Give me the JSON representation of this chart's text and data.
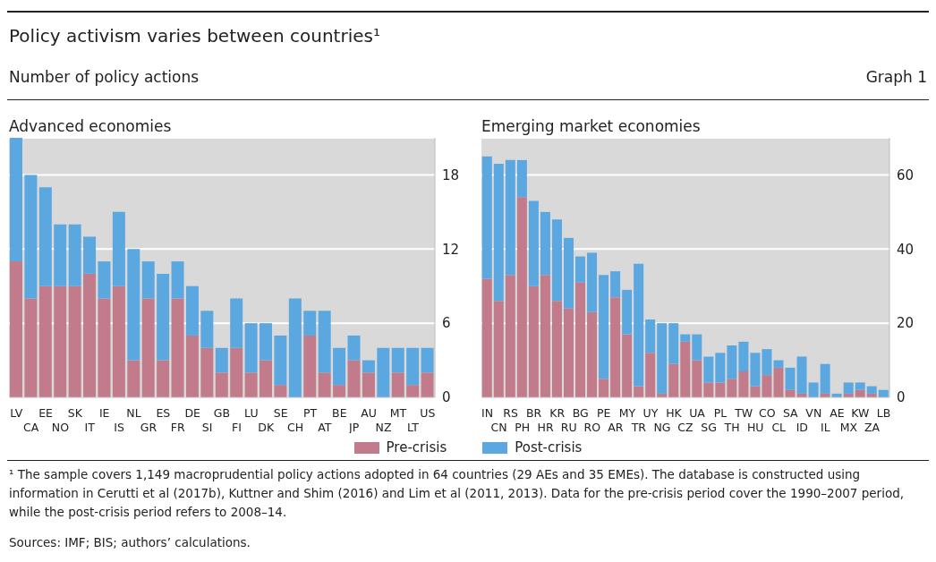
{
  "chart_data": [
    {
      "type": "bar",
      "title": "Advanced economies",
      "stacked": true,
      "grid": "y",
      "legend": "bottom",
      "annotations": [
        "Policy activism varies between countries¹",
        "Number of policy actions",
        "Graph 1",
        "¹ The sample covers 1,149 macroprudential policy actions adopted in 64 countries (29 AEs and 35 EMEs). The database is constructed using information in Cerutti et al (2017b), Kuttner and Shim (2016) and Lim et al (2011, 2013). Data for the pre-crisis period cover the 1990–2007 period, while the post-crisis period refers to 2008–14.",
        "Sources: IMF; BIS; authors’ calculations."
      ],
      "categories": [
        "LV",
        "CA",
        "EE",
        "NO",
        "SK",
        "IT",
        "IE",
        "IS",
        "NL",
        "GR",
        "ES",
        "FR",
        "DE",
        "SI",
        "GB",
        "FI",
        "LU",
        "DK",
        "SE",
        "CH",
        "PT",
        "AT",
        "BE",
        "JP",
        "AU",
        "NZ",
        "MT",
        "LT",
        "US"
      ],
      "ylim": [
        0,
        21
      ],
      "yticks": [
        0,
        6,
        12,
        18
      ],
      "series": [
        {
          "name": "Pre-crisis",
          "color": "#c27b8b",
          "values": [
            11,
            8,
            9,
            9,
            9,
            10,
            8,
            9,
            3,
            8,
            3,
            8,
            5,
            4,
            2,
            4,
            2,
            3,
            1,
            0,
            5,
            2,
            1,
            3,
            2,
            0,
            2,
            1,
            2
          ]
        },
        {
          "name": "Post-crisis",
          "color": "#5ba7e0",
          "values": [
            10,
            10,
            8,
            5,
            5,
            3,
            3,
            6,
            9,
            3,
            7,
            3,
            4,
            3,
            2,
            4,
            4,
            3,
            4,
            8,
            2,
            5,
            3,
            2,
            1,
            4,
            2,
            3,
            2
          ]
        }
      ]
    },
    {
      "type": "bar",
      "title": "Emerging market economies",
      "stacked": true,
      "grid": "y",
      "categories": [
        "IN",
        "CN",
        "RS",
        "PH",
        "BR",
        "HR",
        "KR",
        "RU",
        "BG",
        "RO",
        "PE",
        "AR",
        "MY",
        "TR",
        "UY",
        "NG",
        "HK",
        "CZ",
        "UA",
        "SG",
        "PL",
        "TH",
        "TW",
        "HU",
        "CO",
        "CL",
        "SA",
        "ID",
        "VN",
        "IL",
        "AE",
        "MX",
        "KW",
        "ZA",
        "LB"
      ],
      "ylim": [
        0,
        70
      ],
      "yticks": [
        0,
        20,
        40,
        60
      ],
      "series": [
        {
          "color": "#c27b8b",
          "values": [
            32,
            26,
            33,
            54,
            30,
            33,
            26,
            24,
            31,
            23,
            5,
            27,
            17,
            3,
            12,
            1,
            9,
            15,
            10,
            4,
            4,
            5,
            7,
            3,
            6,
            8,
            2,
            1,
            0,
            1,
            0,
            1,
            2,
            1,
            0
          ]
        },
        {
          "color": "#5ba7e0",
          "values": [
            33,
            37,
            31,
            10,
            23,
            17,
            22,
            19,
            7,
            16,
            28,
            7,
            12,
            33,
            9,
            19,
            11,
            2,
            7,
            7,
            8,
            9,
            8,
            9,
            7,
            2,
            6,
            10,
            4,
            8,
            1,
            3,
            2,
            2,
            2
          ]
        }
      ]
    }
  ]
}
